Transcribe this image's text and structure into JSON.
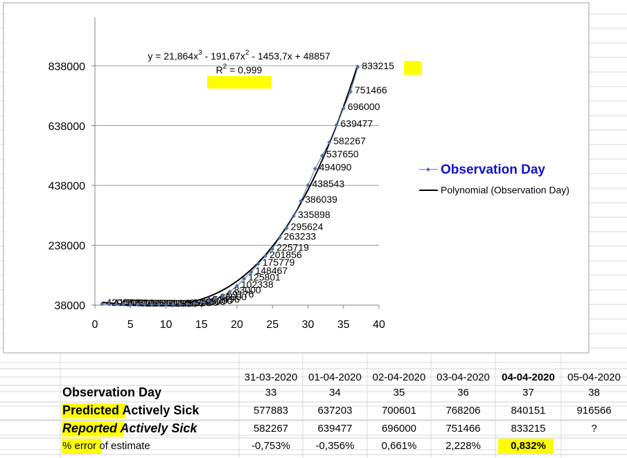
{
  "chart_data": {
    "type": "line",
    "x": [
      1,
      2,
      3,
      4,
      5,
      6,
      7,
      8,
      9,
      10,
      11,
      12,
      13,
      14,
      15,
      16,
      17,
      18,
      19,
      20,
      21,
      22,
      23,
      24,
      25,
      26,
      27,
      28,
      29,
      30,
      31,
      32,
      33,
      34,
      35,
      36,
      37
    ],
    "series": [
      {
        "name": "Observation Day",
        "color": "#4f6fa8",
        "values": [
          42000,
          41500,
          41000,
          40500,
          40200,
          39800,
          39500,
          39300,
          39100,
          39000,
          39500,
          40500,
          42000,
          44500,
          48000,
          52496,
          60000,
          69176,
          83000,
          102338,
          125801,
          148467,
          175779,
          201856,
          225719,
          263233,
          295624,
          335898,
          386039,
          438543,
          494090,
          537650,
          582267,
          639477,
          696000,
          751466,
          833215
        ]
      }
    ],
    "trendline": {
      "name": "Polynomial (Observation Day)",
      "color": "#000000",
      "coefficients": [
        21.864,
        -191.67,
        -1453.7,
        48857
      ]
    },
    "equation": [
      "y = 21,864x",
      "3",
      " - 191,67x",
      "2",
      " - 1453,7x + 48857"
    ],
    "r_squared": [
      "R",
      "2",
      " = 0,999"
    ],
    "xlim": [
      0,
      40
    ],
    "xticks": [
      0,
      5,
      10,
      15,
      20,
      25,
      30,
      35,
      40
    ],
    "ylim": [
      38000,
      1000000
    ],
    "yticks": [
      38000,
      238000,
      438000,
      638000,
      838000
    ],
    "grid": true,
    "legend": "right"
  },
  "table": {
    "header": [
      "31-03-2020",
      "01-04-2020",
      "02-04-2020",
      "03-04-2020",
      "04-04-2020",
      "05-04-2020"
    ],
    "rows": [
      {
        "label": [
          "Observation Day",
          ""
        ],
        "cells": [
          "33",
          "34",
          "35",
          "36",
          "37",
          "38"
        ]
      },
      {
        "label": [
          "Predicted",
          " Actively Sick"
        ],
        "cells": [
          "577883",
          "637203",
          "700601",
          "768206",
          "840151",
          "916566"
        ]
      },
      {
        "label": [
          "Reported",
          " Actively Sick"
        ],
        "cells": [
          "582267",
          "639477",
          "696000",
          "751466",
          "833215",
          "?"
        ]
      },
      {
        "label": [
          "% error",
          " of estimate"
        ],
        "cells": [
          "-0,753%",
          "-0,356%",
          "0,661%",
          "2,228%",
          "0,832%",
          ""
        ]
      }
    ]
  }
}
